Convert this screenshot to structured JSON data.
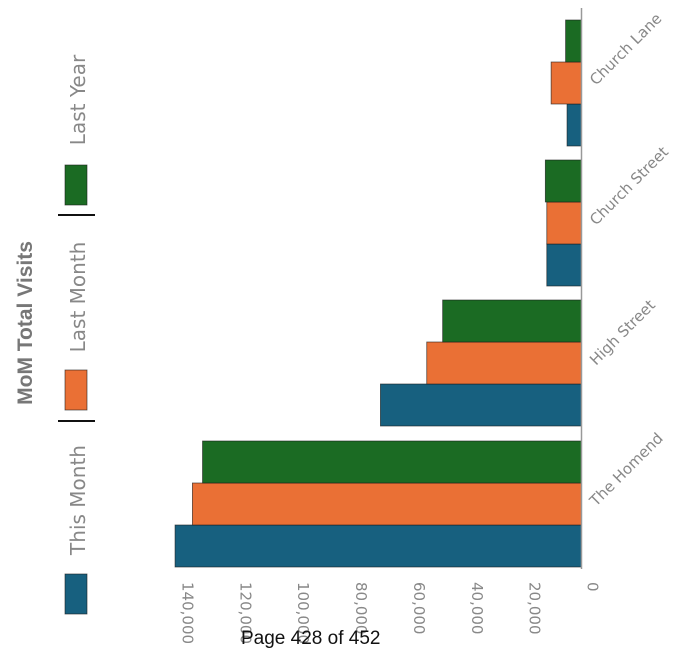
{
  "chart_data": {
    "type": "bar",
    "orientation": "horizontal",
    "rotated": "90deg-clockwise",
    "title": "MoM Total Visits",
    "categories": [
      "The Homend",
      "High Street",
      "Church Street",
      "Church Lane"
    ],
    "series": [
      {
        "name": "This Month",
        "color": "#17607f",
        "values": [
          140500,
          69500,
          12000,
          5000
        ]
      },
      {
        "name": "Last Month",
        "color": "#ea7035",
        "values": [
          134500,
          53500,
          12000,
          10500
        ]
      },
      {
        "name": "Last Year",
        "color": "#1b6b23",
        "values": [
          131000,
          48000,
          12500,
          5500
        ]
      }
    ],
    "value_axis": {
      "min": 0,
      "max": 140000,
      "ticks": [
        0,
        20000,
        40000,
        60000,
        80000,
        100000,
        120000,
        140000
      ],
      "tick_labels": [
        "0",
        "20,000",
        "40,000",
        "60,000",
        "80,000",
        "100,000",
        "120,000",
        "140,000"
      ]
    },
    "grid": false,
    "legend": {
      "placement": "left",
      "entries": [
        "This Month",
        "Last Month",
        "Last Year"
      ]
    }
  },
  "footer": {
    "page_label": "Page 428 of 452"
  }
}
